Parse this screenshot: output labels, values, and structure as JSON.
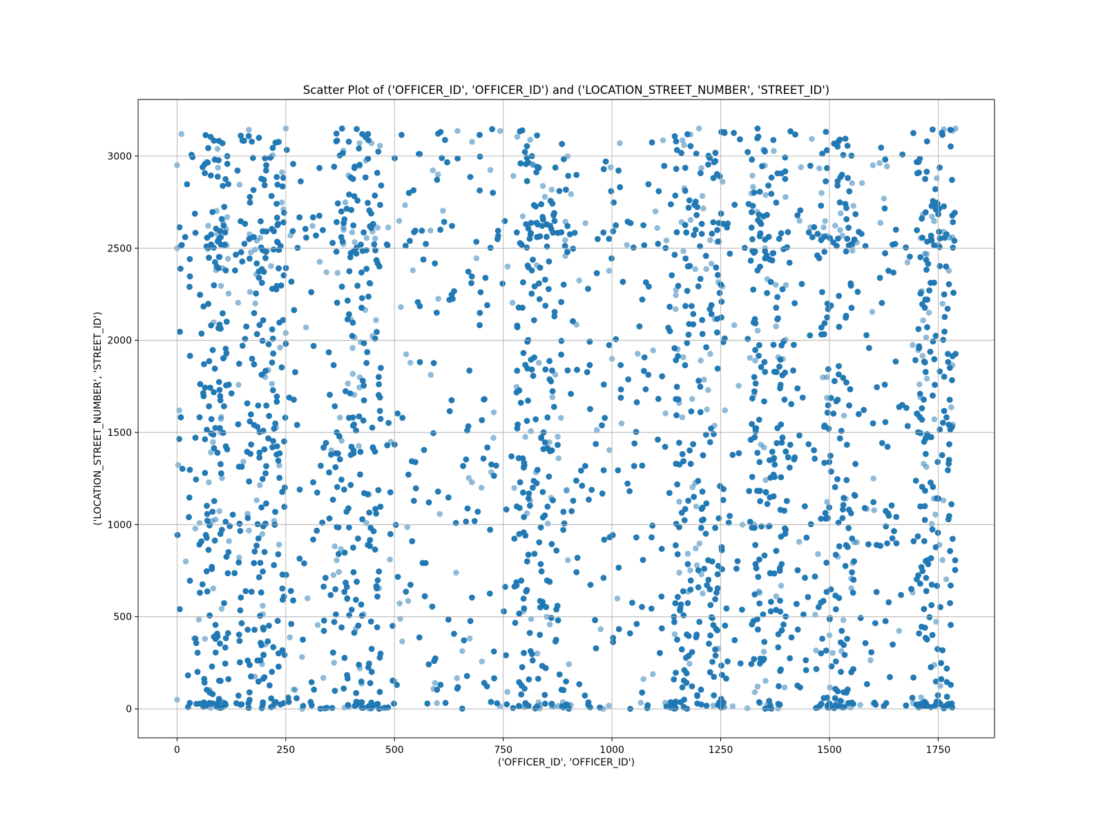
{
  "chart_data": {
    "type": "scatter",
    "title": "Scatter Plot of ('OFFICER_ID', 'OFFICER_ID') and ('LOCATION_STREET_NUMBER', 'STREET_ID')",
    "xlabel": "('OFFICER_ID', 'OFFICER_ID')",
    "ylabel": "('LOCATION_STREET_NUMBER', 'STREET_ID')",
    "xlim": [
      -89.5,
      1879.5
    ],
    "ylim": [
      -157,
      3307
    ],
    "x_ticks": [
      0,
      250,
      500,
      750,
      1000,
      1250,
      1500,
      1750
    ],
    "y_ticks": [
      0,
      500,
      1000,
      1500,
      2000,
      2500,
      3000
    ],
    "x_tick_labels": [
      "0",
      "250",
      "500",
      "750",
      "1000",
      "1250",
      "1500",
      "1750"
    ],
    "y_tick_labels": [
      "0",
      "500",
      "1000",
      "1500",
      "2000",
      "2500",
      "3000"
    ],
    "grid": true,
    "legend": "none",
    "marker_color": "#1f77b4",
    "marker_alpha": 0.5,
    "series": [
      {
        "description": "Dense point cloud: x spans about 0 to 1790, y spans about 0 to 3150; heavily overplotted into solid vertical bands",
        "x_range": [
          0,
          1790
        ],
        "y_range": [
          0,
          3150
        ],
        "dense_x_bands": [
          [
            60,
            120
          ],
          [
            140,
            250
          ],
          [
            360,
            470
          ],
          [
            780,
            900
          ],
          [
            1140,
            1260
          ],
          [
            1320,
            1400
          ],
          [
            1480,
            1560
          ],
          [
            1700,
            1790
          ]
        ],
        "dense_y_bands": [
          [
            0,
            40
          ],
          [
            2500,
            2650
          ]
        ],
        "sample_points": [
          [
            0,
            50
          ],
          [
            0,
            2500
          ],
          [
            0,
            2950
          ],
          [
            5,
            1620
          ],
          [
            10,
            3120
          ],
          [
            20,
            800
          ],
          [
            100,
            1500
          ],
          [
            180,
            2200
          ],
          [
            250,
            3150
          ],
          [
            300,
            600
          ],
          [
            420,
            1800
          ],
          [
            500,
            150
          ],
          [
            600,
            2900
          ],
          [
            700,
            1200
          ],
          [
            760,
            2400
          ],
          [
            850,
            500
          ],
          [
            980,
            0
          ],
          [
            1000,
            1900
          ],
          [
            1100,
            2700
          ],
          [
            1200,
            3150
          ],
          [
            1300,
            1000
          ],
          [
            1400,
            2300
          ],
          [
            1500,
            400
          ],
          [
            1600,
            2950
          ],
          [
            1700,
            1600
          ],
          [
            1790,
            3150
          ]
        ]
      }
    ]
  }
}
